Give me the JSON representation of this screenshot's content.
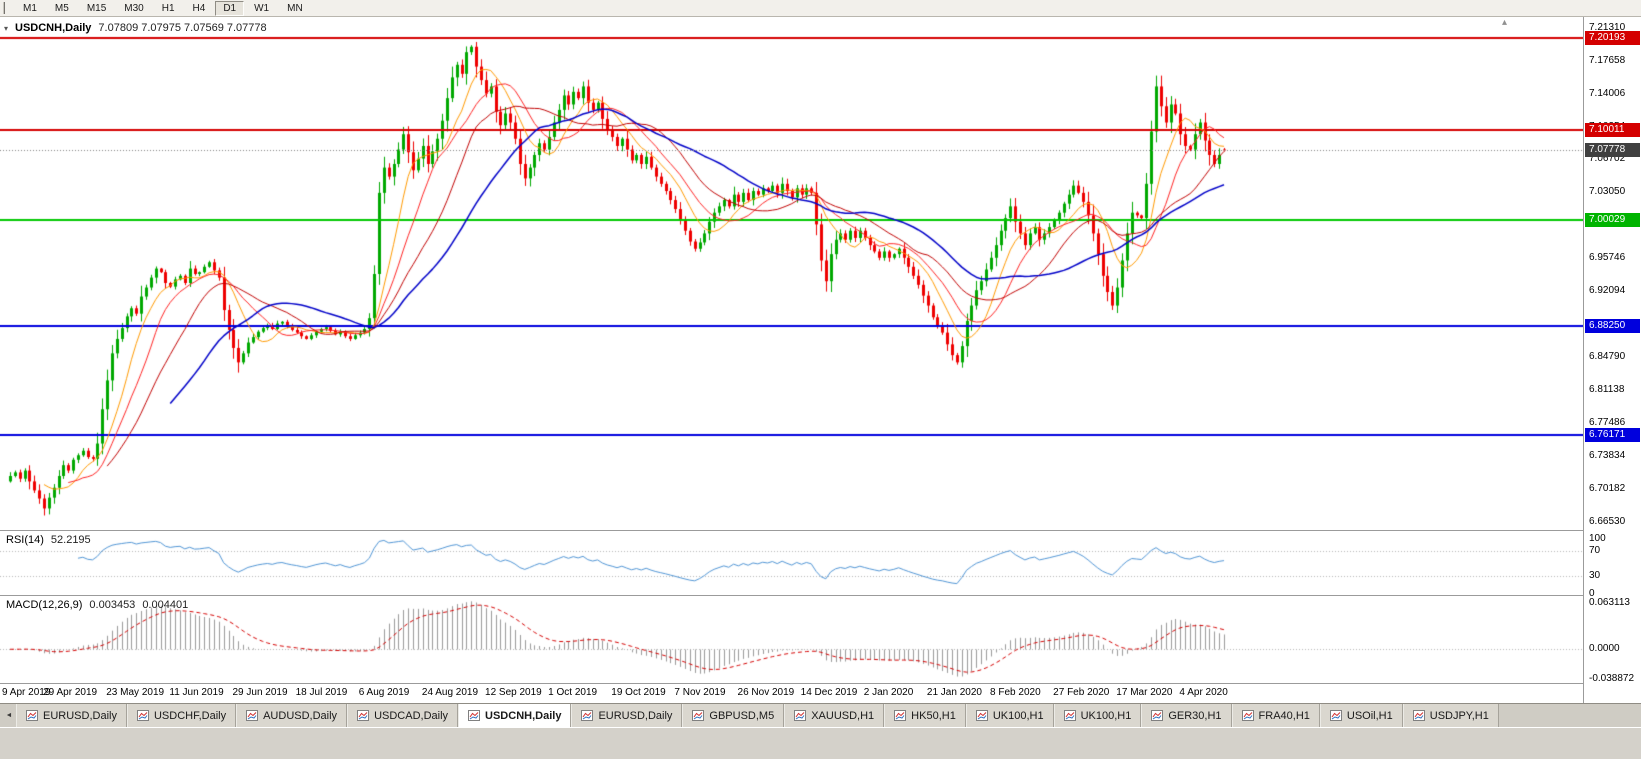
{
  "toolbar": {
    "timeframes": [
      {
        "label": "M1",
        "active": false
      },
      {
        "label": "M5",
        "active": false
      },
      {
        "label": "M15",
        "active": false
      },
      {
        "label": "M30",
        "active": false
      },
      {
        "label": "H1",
        "active": false
      },
      {
        "label": "H4",
        "active": false
      },
      {
        "label": "D1",
        "active": true
      },
      {
        "label": "W1",
        "active": false
      },
      {
        "label": "MN",
        "active": false
      }
    ]
  },
  "chart": {
    "title": {
      "symbol": "USDCNH,Daily",
      "ohlc": "7.07809 7.07975 7.07569 7.07778"
    },
    "icons": {
      "collapse": "▾",
      "scroll_marker": "▴",
      "tab_scroll_left": "◄"
    },
    "price_axis": {
      "ticks": [
        "7.21310",
        "7.17658",
        "7.14006",
        "7.10354",
        "7.06702",
        "7.03050",
        "6.99398",
        "6.95746",
        "6.92094",
        "6.88442",
        "6.84790",
        "6.81138",
        "6.77486",
        "6.73834",
        "6.70182",
        "6.66530"
      ],
      "badges": [
        {
          "value": "7.20193",
          "color": "#d40000"
        },
        {
          "value": "7.10011",
          "color": "#d40000"
        },
        {
          "value": "7.07778",
          "color": "#404040"
        },
        {
          "value": "7.00029",
          "color": "#00b400"
        },
        {
          "value": "6.88250",
          "color": "#0000dd"
        },
        {
          "value": "6.76171",
          "color": "#0000dd"
        }
      ]
    }
  },
  "indicators": {
    "rsi": {
      "label": "RSI(14)",
      "value": "52.2195",
      "axis_labels": [
        "100",
        "70",
        "30",
        "0"
      ],
      "levels": [
        70,
        30
      ],
      "color": "#4f94d4"
    },
    "macd": {
      "label": "MACD(12,26,9)",
      "value_main": "0.003453",
      "value_signal": "0.004401",
      "axis_labels": [
        "0.063113",
        "0.0000",
        "-0.038872"
      ],
      "range": [
        -0.038872,
        0.063113
      ],
      "histogram_color": "#999999",
      "signal_color": "#d40000"
    }
  },
  "chart_data": {
    "type": "candlestick",
    "title": "USDCNH Daily",
    "x_labels": [
      "9 Apr 2019",
      "29 Apr 2019",
      "23 May 2019",
      "11 Jun 2019",
      "29 Jun 2019",
      "18 Jul 2019",
      "6 Aug 2019",
      "24 Aug 2019",
      "12 Sep 2019",
      "1 Oct 2019",
      "19 Oct 2019",
      "7 Nov 2019",
      "26 Nov 2019",
      "14 Dec 2019",
      "2 Jan 2020",
      "21 Jan 2020",
      "8 Feb 2020",
      "27 Feb 2020",
      "17 Mar 2020",
      "4 Apr 2020"
    ],
    "bars_per_label": 13,
    "ylim": [
      6.655,
      7.225
    ],
    "ohlc_current": {
      "open": 7.07809,
      "high": 7.07975,
      "low": 7.07569,
      "close": 7.07778
    },
    "up_color": "#00a800",
    "down_color": "#ee0000",
    "closes": [
      6.716,
      6.72,
      6.713,
      6.722,
      6.71,
      6.7,
      6.691,
      6.68,
      6.692,
      6.703,
      6.716,
      6.728,
      6.722,
      6.734,
      6.739,
      6.744,
      6.737,
      6.735,
      6.752,
      6.79,
      6.822,
      6.852,
      6.868,
      6.88,
      6.893,
      6.902,
      6.896,
      6.915,
      6.925,
      6.936,
      6.946,
      6.942,
      6.93,
      6.926,
      6.934,
      6.938,
      6.93,
      6.946,
      6.94,
      6.942,
      6.948,
      6.953,
      6.944,
      6.936,
      6.9,
      6.878,
      6.858,
      6.842,
      6.852,
      6.864,
      6.87,
      6.876,
      6.88,
      6.883,
      6.879,
      6.885,
      6.887,
      6.882,
      6.878,
      6.875,
      6.871,
      6.868,
      6.872,
      6.876,
      6.879,
      6.881,
      6.877,
      6.873,
      6.876,
      6.871,
      6.868,
      6.872,
      6.875,
      6.879,
      6.891,
      6.94,
      7.03,
      7.058,
      7.048,
      7.062,
      7.078,
      7.095,
      7.075,
      7.055,
      7.068,
      7.082,
      7.062,
      7.076,
      7.09,
      7.11,
      7.135,
      7.158,
      7.172,
      7.162,
      7.186,
      7.192,
      7.17,
      7.155,
      7.14,
      7.148,
      7.12,
      7.105,
      7.118,
      7.108,
      7.09,
      7.062,
      7.046,
      7.058,
      7.072,
      7.085,
      7.078,
      7.092,
      7.108,
      7.122,
      7.138,
      7.128,
      7.142,
      7.135,
      7.148,
      7.13,
      7.122,
      7.13,
      7.112,
      7.1,
      7.092,
      7.082,
      7.09,
      7.078,
      7.066,
      7.072,
      7.062,
      7.07,
      7.058,
      7.048,
      7.04,
      7.032,
      7.022,
      7.012,
      7.0,
      6.988,
      6.976,
      6.968,
      6.975,
      6.985,
      6.998,
      7.008,
      7.015,
      7.022,
      7.015,
      7.028,
      7.02,
      7.03,
      7.022,
      7.032,
      7.028,
      7.035,
      7.032,
      7.038,
      7.03,
      7.04,
      7.032,
      7.025,
      7.035,
      7.028,
      7.035,
      7.03,
      6.995,
      6.955,
      6.932,
      6.962,
      6.978,
      6.985,
      6.978,
      6.988,
      6.98,
      6.988,
      6.98,
      6.972,
      6.965,
      6.958,
      6.965,
      6.958,
      6.962,
      6.968,
      6.958,
      6.948,
      6.938,
      6.928,
      6.916,
      6.905,
      6.892,
      6.882,
      6.875,
      6.862,
      6.85,
      6.842,
      6.86,
      6.888,
      6.905,
      6.922,
      6.932,
      6.945,
      6.958,
      6.972,
      6.988,
      7.002,
      7.015,
      6.998,
      6.985,
      6.972,
      6.985,
      6.992,
      6.978,
      6.985,
      6.992,
      7.0,
      7.008,
      7.018,
      7.028,
      7.038,
      7.03,
      7.02,
      7.005,
      6.985,
      6.962,
      6.938,
      6.92,
      6.905,
      6.925,
      6.955,
      6.985,
      7.008,
      7.005,
      7.002,
      7.04,
      7.098,
      7.148,
      7.126,
      7.108,
      7.128,
      7.118,
      7.095,
      7.082,
      7.078,
      7.095,
      7.108,
      7.088,
      7.072,
      7.062,
      7.072,
      7.07778
    ],
    "hlines": [
      {
        "price": 7.20193,
        "color": "#d40000",
        "width": 2
      },
      {
        "price": 7.10011,
        "color": "#d40000",
        "width": 2
      },
      {
        "price": 7.00029,
        "color": "#00c800",
        "width": 2
      },
      {
        "price": 6.8825,
        "color": "#0000dd",
        "width": 2
      },
      {
        "price": 6.76171,
        "color": "#0000dd",
        "width": 2
      }
    ],
    "bid_line": {
      "price": 7.07778,
      "style": "dotted",
      "color": "#808080"
    },
    "moving_averages": [
      {
        "type": "sma",
        "period": 8,
        "color": "#ff9900",
        "width": 1
      },
      {
        "type": "sma",
        "period": 13,
        "color": "#ff2222",
        "width": 1
      },
      {
        "type": "sma",
        "period": 21,
        "color": "#c00000",
        "width": 1
      },
      {
        "type": "sma",
        "period": 34,
        "color": "#0000c8",
        "width": 1.5
      }
    ]
  },
  "tabs": {
    "items": [
      {
        "label": "EURUSD,Daily",
        "active": false
      },
      {
        "label": "USDCHF,Daily",
        "active": false
      },
      {
        "label": "AUDUSD,Daily",
        "active": false
      },
      {
        "label": "USDCAD,Daily",
        "active": false
      },
      {
        "label": "USDCNH,Daily",
        "active": true
      },
      {
        "label": "EURUSD,Daily",
        "active": false
      },
      {
        "label": "GBPUSD,M5",
        "active": false
      },
      {
        "label": "XAUUSD,H1",
        "active": false
      },
      {
        "label": "HK50,H1",
        "active": false
      },
      {
        "label": "UK100,H1",
        "active": false
      },
      {
        "label": "UK100,H1",
        "active": false
      },
      {
        "label": "GER30,H1",
        "active": false
      },
      {
        "label": "FRA40,H1",
        "active": false
      },
      {
        "label": "USOil,H1",
        "active": false
      },
      {
        "label": "USDJPY,H1",
        "active": false
      }
    ]
  }
}
